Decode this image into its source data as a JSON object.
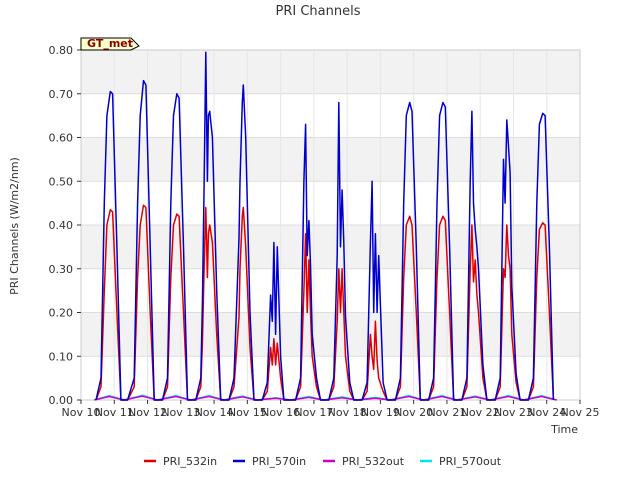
{
  "chart_data": {
    "type": "line",
    "title": "PRI Channels",
    "xlabel": "Time",
    "ylabel": "PRI Channels (W/m2/nm)",
    "badge": "GT_met",
    "xlim": [
      10,
      25
    ],
    "ylim": [
      0,
      0.8
    ],
    "x_ticks": [
      10,
      11,
      12,
      13,
      14,
      15,
      16,
      17,
      18,
      19,
      20,
      21,
      22,
      23,
      24,
      25
    ],
    "x_tick_labels": [
      "Nov 10",
      "Nov 11",
      "Nov 12",
      "Nov 13",
      "Nov 14",
      "Nov 15",
      "Nov 16",
      "Nov 17",
      "Nov 18",
      "Nov 19",
      "Nov 20",
      "Nov 21",
      "Nov 22",
      "Nov 23",
      "Nov 24",
      "Nov 25"
    ],
    "y_ticks": [
      0,
      0.1,
      0.2,
      0.3,
      0.4,
      0.5,
      0.6,
      0.7,
      0.8
    ],
    "y_tick_labels": [
      "0.00",
      "0.10",
      "0.20",
      "0.30",
      "0.40",
      "0.50",
      "0.60",
      "0.70",
      "0.80"
    ],
    "grid": true,
    "legend_position": "bottom-center",
    "series": [
      {
        "name": "PRI_532in",
        "color": "#dd0000",
        "x": [
          10.45,
          10.6,
          10.7,
          10.78,
          10.88,
          10.95,
          11.08,
          11.2,
          11.4,
          11.6,
          11.7,
          11.78,
          11.88,
          11.95,
          12.08,
          12.2,
          12.45,
          12.6,
          12.7,
          12.78,
          12.88,
          12.95,
          13.08,
          13.2,
          13.45,
          13.6,
          13.65,
          13.7,
          13.75,
          13.8,
          13.83,
          13.87,
          13.95,
          14.08,
          14.2,
          14.45,
          14.6,
          14.75,
          14.78,
          14.85,
          14.88,
          14.95,
          15.08,
          15.2,
          15.45,
          15.6,
          15.7,
          15.75,
          15.8,
          15.85,
          15.9,
          16.0,
          16.1,
          16.45,
          16.6,
          16.7,
          16.75,
          16.8,
          16.85,
          16.9,
          16.95,
          17.08,
          17.2,
          17.45,
          17.6,
          17.7,
          17.75,
          17.8,
          17.85,
          17.9,
          17.95,
          18.08,
          18.2,
          18.45,
          18.6,
          18.7,
          18.75,
          18.8,
          18.85,
          18.9,
          18.95,
          19.08,
          19.2,
          19.45,
          19.6,
          19.7,
          19.78,
          19.88,
          19.95,
          20.08,
          20.2,
          20.45,
          20.6,
          20.7,
          20.78,
          20.88,
          20.95,
          21.08,
          21.2,
          21.45,
          21.6,
          21.7,
          21.75,
          21.8,
          21.85,
          21.9,
          21.95,
          22.08,
          22.2,
          22.45,
          22.6,
          22.7,
          22.75,
          22.8,
          22.85,
          22.9,
          22.95,
          23.08,
          23.2,
          23.45,
          23.6,
          23.7,
          23.78,
          23.88,
          23.95,
          24.08,
          24.2
        ],
        "y": [
          0.0,
          0.03,
          0.25,
          0.4,
          0.435,
          0.43,
          0.2,
          0.0,
          0.0,
          0.03,
          0.28,
          0.4,
          0.445,
          0.44,
          0.2,
          0.0,
          0.0,
          0.03,
          0.28,
          0.4,
          0.425,
          0.42,
          0.2,
          0.0,
          0.0,
          0.03,
          0.13,
          0.3,
          0.44,
          0.28,
          0.38,
          0.4,
          0.36,
          0.15,
          0.0,
          0.0,
          0.03,
          0.19,
          0.3,
          0.42,
          0.44,
          0.35,
          0.12,
          0.0,
          0.0,
          0.02,
          0.12,
          0.08,
          0.14,
          0.08,
          0.13,
          0.05,
          0.0,
          0.0,
          0.03,
          0.25,
          0.38,
          0.2,
          0.32,
          0.2,
          0.1,
          0.03,
          0.0,
          0.0,
          0.03,
          0.18,
          0.3,
          0.2,
          0.3,
          0.2,
          0.1,
          0.02,
          0.0,
          0.0,
          0.02,
          0.15,
          0.1,
          0.07,
          0.18,
          0.09,
          0.05,
          0.02,
          0.0,
          0.0,
          0.03,
          0.28,
          0.4,
          0.42,
          0.4,
          0.2,
          0.0,
          0.0,
          0.03,
          0.28,
          0.4,
          0.42,
          0.41,
          0.2,
          0.0,
          0.0,
          0.03,
          0.3,
          0.4,
          0.27,
          0.32,
          0.24,
          0.2,
          0.05,
          0.0,
          0.0,
          0.03,
          0.3,
          0.28,
          0.4,
          0.33,
          0.3,
          0.15,
          0.04,
          0.0,
          0.0,
          0.03,
          0.28,
          0.39,
          0.405,
          0.4,
          0.2,
          0.0
        ]
      },
      {
        "name": "PRI_570in",
        "color": "#0000cc",
        "x": [
          10.45,
          10.6,
          10.7,
          10.78,
          10.88,
          10.95,
          11.08,
          11.2,
          11.4,
          11.6,
          11.7,
          11.78,
          11.88,
          11.95,
          12.08,
          12.2,
          12.45,
          12.6,
          12.7,
          12.78,
          12.88,
          12.95,
          13.08,
          13.2,
          13.45,
          13.6,
          13.65,
          13.7,
          13.75,
          13.8,
          13.83,
          13.87,
          13.95,
          14.08,
          14.2,
          14.45,
          14.6,
          14.75,
          14.78,
          14.85,
          14.88,
          14.95,
          15.08,
          15.2,
          15.45,
          15.6,
          15.7,
          15.75,
          15.8,
          15.85,
          15.9,
          16.0,
          16.1,
          16.45,
          16.6,
          16.7,
          16.75,
          16.8,
          16.85,
          16.9,
          16.95,
          17.08,
          17.2,
          17.45,
          17.6,
          17.7,
          17.75,
          17.8,
          17.85,
          17.9,
          17.95,
          18.08,
          18.2,
          18.45,
          18.6,
          18.7,
          18.75,
          18.8,
          18.85,
          18.9,
          18.95,
          19.08,
          19.2,
          19.45,
          19.6,
          19.7,
          19.78,
          19.88,
          19.95,
          20.08,
          20.2,
          20.45,
          20.6,
          20.7,
          20.78,
          20.88,
          20.95,
          21.08,
          21.2,
          21.45,
          21.6,
          21.7,
          21.75,
          21.8,
          21.85,
          21.9,
          21.95,
          22.08,
          22.2,
          22.45,
          22.6,
          22.7,
          22.75,
          22.8,
          22.85,
          22.9,
          22.95,
          23.08,
          23.2,
          23.45,
          23.6,
          23.7,
          23.78,
          23.88,
          23.95,
          24.08,
          24.2
        ],
        "y": [
          0.0,
          0.05,
          0.45,
          0.65,
          0.705,
          0.7,
          0.35,
          0.0,
          0.0,
          0.05,
          0.45,
          0.65,
          0.73,
          0.72,
          0.35,
          0.0,
          0.0,
          0.05,
          0.45,
          0.65,
          0.7,
          0.69,
          0.35,
          0.0,
          0.0,
          0.05,
          0.22,
          0.49,
          0.795,
          0.5,
          0.65,
          0.66,
          0.6,
          0.25,
          0.0,
          0.0,
          0.05,
          0.37,
          0.5,
          0.68,
          0.72,
          0.6,
          0.2,
          0.0,
          0.0,
          0.04,
          0.24,
          0.18,
          0.36,
          0.15,
          0.35,
          0.1,
          0.0,
          0.0,
          0.05,
          0.5,
          0.63,
          0.33,
          0.41,
          0.31,
          0.15,
          0.05,
          0.0,
          0.0,
          0.05,
          0.33,
          0.68,
          0.35,
          0.48,
          0.36,
          0.19,
          0.04,
          0.0,
          0.0,
          0.04,
          0.36,
          0.5,
          0.2,
          0.38,
          0.2,
          0.33,
          0.04,
          0.0,
          0.0,
          0.05,
          0.45,
          0.65,
          0.68,
          0.66,
          0.35,
          0.0,
          0.0,
          0.05,
          0.45,
          0.65,
          0.68,
          0.67,
          0.35,
          0.0,
          0.0,
          0.05,
          0.5,
          0.66,
          0.45,
          0.39,
          0.35,
          0.3,
          0.08,
          0.0,
          0.0,
          0.05,
          0.55,
          0.45,
          0.64,
          0.58,
          0.52,
          0.26,
          0.06,
          0.0,
          0.0,
          0.05,
          0.45,
          0.63,
          0.655,
          0.65,
          0.35,
          0.0
        ]
      },
      {
        "name": "PRI_532out",
        "color": "#cc00cc",
        "x": [
          10.4,
          10.85,
          11.3,
          11.85,
          12.3,
          12.85,
          13.3,
          13.85,
          14.3,
          14.85,
          15.3,
          15.85,
          16.3,
          16.85,
          17.3,
          17.85,
          18.3,
          18.85,
          19.3,
          19.85,
          20.3,
          20.85,
          21.3,
          21.85,
          22.3,
          22.85,
          23.3,
          23.85,
          24.3
        ],
        "y": [
          0.0,
          0.008,
          0.0,
          0.009,
          0.0,
          0.008,
          0.0,
          0.008,
          0.0,
          0.007,
          0.0,
          0.004,
          0.0,
          0.006,
          0.0,
          0.005,
          0.0,
          0.004,
          0.0,
          0.008,
          0.0,
          0.008,
          0.0,
          0.007,
          0.0,
          0.008,
          0.0,
          0.008,
          0.0
        ]
      },
      {
        "name": "PRI_570out",
        "color": "#00e5ee",
        "x": [
          10.4,
          10.85,
          11.3,
          11.85,
          12.3,
          12.85,
          13.3,
          13.85,
          14.3,
          14.85,
          15.3,
          15.85,
          16.3,
          16.85,
          17.3,
          17.85,
          18.3,
          18.85,
          19.3,
          19.85,
          20.3,
          20.85,
          21.3,
          21.85,
          22.3,
          22.85,
          23.3,
          23.85,
          24.3
        ],
        "y": [
          0.0,
          0.01,
          0.0,
          0.011,
          0.0,
          0.01,
          0.0,
          0.01,
          0.0,
          0.009,
          0.0,
          0.005,
          0.0,
          0.008,
          0.0,
          0.007,
          0.0,
          0.006,
          0.0,
          0.01,
          0.0,
          0.01,
          0.0,
          0.009,
          0.0,
          0.01,
          0.0,
          0.01,
          0.0
        ]
      }
    ]
  }
}
